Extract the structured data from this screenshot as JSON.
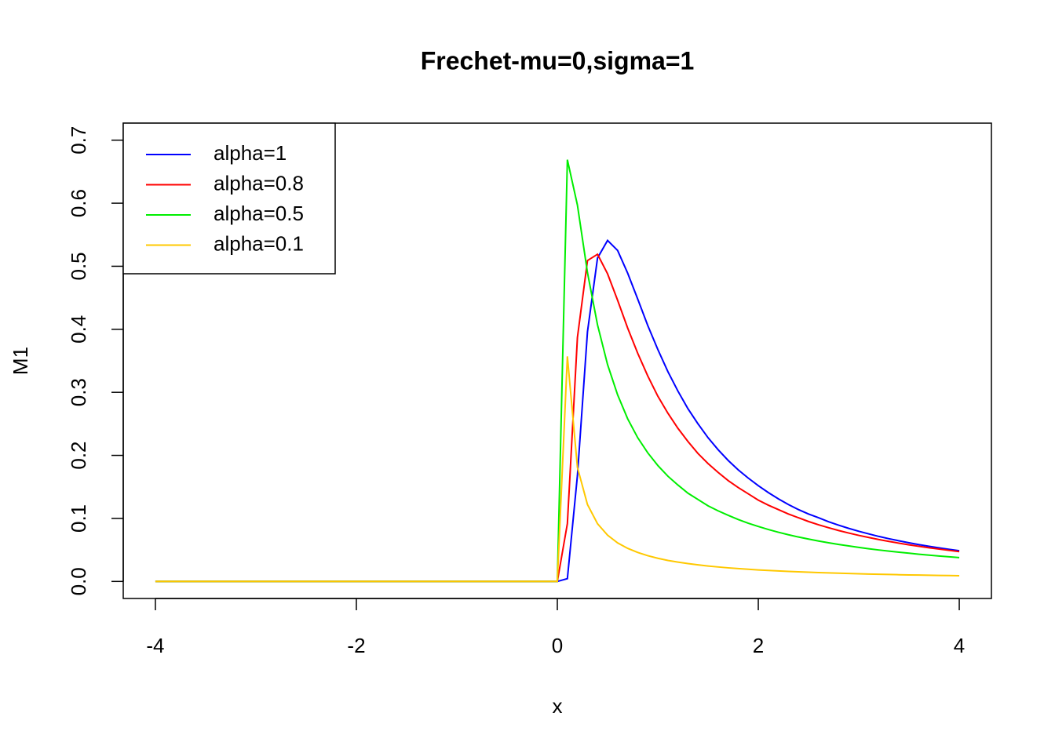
{
  "chart_data": {
    "type": "line",
    "title": "Frechet-mu=0,sigma=1",
    "x_label": "x",
    "y_label": "M1",
    "x": [
      -4,
      -3.9,
      -3.8,
      -3.7,
      -3.6,
      -3.5,
      -3.4,
      -3.3,
      -3.2,
      -3.1,
      -3,
      -2.9,
      -2.8,
      -2.7,
      -2.6,
      -2.5,
      -2.4,
      -2.3,
      -2.2,
      -2.1,
      -2,
      -1.9,
      -1.8,
      -1.7,
      -1.6,
      -1.5,
      -1.4,
      -1.3,
      -1.2,
      -1.1,
      -1,
      -0.9,
      -0.8,
      -0.7,
      -0.6,
      -0.5,
      -0.4,
      -0.3,
      -0.2,
      -0.1,
      0,
      0.1,
      0.2,
      0.3,
      0.4,
      0.5,
      0.6,
      0.7,
      0.8,
      0.9,
      1,
      1.1,
      1.2,
      1.3,
      1.4,
      1.5,
      1.6,
      1.7,
      1.8,
      1.9,
      2,
      2.1,
      2.2,
      2.3,
      2.4,
      2.5,
      2.6,
      2.7,
      2.8,
      2.9,
      3,
      3.1,
      3.2,
      3.3,
      3.4,
      3.5,
      3.6,
      3.7,
      3.8,
      3.9,
      4
    ],
    "series": [
      {
        "name": "alpha=1",
        "color": "#0000ff",
        "values": [
          0,
          0,
          0,
          0,
          0,
          0,
          0,
          0,
          0,
          0,
          0,
          0,
          0,
          0,
          0,
          0,
          0,
          0,
          0,
          0,
          0,
          0,
          0,
          0,
          0,
          0,
          0,
          0,
          0,
          0,
          0,
          0,
          0,
          0,
          0,
          0,
          0,
          0,
          0,
          0,
          0,
          0.0045,
          0.168,
          0.396,
          0.513,
          0.541,
          0.525,
          0.489,
          0.448,
          0.406,
          0.368,
          0.333,
          0.302,
          0.274,
          0.25,
          0.228,
          0.209,
          0.192,
          0.177,
          0.164,
          0.152,
          0.141,
          0.131,
          0.122,
          0.114,
          0.107,
          0.101,
          0.0947,
          0.0893,
          0.0842,
          0.0796,
          0.0754,
          0.0714,
          0.0678,
          0.0645,
          0.0613,
          0.0584,
          0.0557,
          0.0532,
          0.0509,
          0.0487
        ]
      },
      {
        "name": "alpha=0.8",
        "color": "#ff0000",
        "values": [
          0,
          0,
          0,
          0,
          0,
          0,
          0,
          0,
          0,
          0,
          0,
          0,
          0,
          0,
          0,
          0,
          0,
          0,
          0,
          0,
          0,
          0,
          0,
          0,
          0,
          0,
          0,
          0,
          0,
          0,
          0,
          0,
          0,
          0,
          0,
          0,
          0,
          0,
          0,
          0,
          0,
          0.0918,
          0.387,
          0.509,
          0.519,
          0.488,
          0.446,
          0.402,
          0.362,
          0.326,
          0.294,
          0.267,
          0.243,
          0.222,
          0.203,
          0.187,
          0.173,
          0.16,
          0.149,
          0.139,
          0.129,
          0.121,
          0.114,
          0.107,
          0.101,
          0.0951,
          0.0899,
          0.0852,
          0.0808,
          0.0768,
          0.0731,
          0.0697,
          0.0665,
          0.0635,
          0.0607,
          0.0581,
          0.0557,
          0.0534,
          0.0513,
          0.0493,
          0.0474
        ]
      },
      {
        "name": "alpha=0.5",
        "color": "#00ee00",
        "values": [
          0,
          0,
          0,
          0,
          0,
          0,
          0,
          0,
          0,
          0,
          0,
          0,
          0,
          0,
          0,
          0,
          0,
          0,
          0,
          0,
          0,
          0,
          0,
          0,
          0,
          0,
          0,
          0,
          0,
          0,
          0,
          0,
          0,
          0,
          0,
          0,
          0,
          0,
          0,
          0,
          0,
          0.669,
          0.597,
          0.49,
          0.407,
          0.344,
          0.296,
          0.258,
          0.228,
          0.204,
          0.184,
          0.167,
          0.153,
          0.14,
          0.13,
          0.12,
          0.112,
          0.105,
          0.0983,
          0.0924,
          0.0872,
          0.0824,
          0.0781,
          0.0741,
          0.0705,
          0.0672,
          0.0641,
          0.0613,
          0.0587,
          0.0563,
          0.054,
          0.0519,
          0.0499,
          0.0481,
          0.0464,
          0.0448,
          0.0432,
          0.0418,
          0.0404,
          0.0391,
          0.0379
        ]
      },
      {
        "name": "alpha=0.1",
        "color": "#ffc800",
        "values": [
          0,
          0,
          0,
          0,
          0,
          0,
          0,
          0,
          0,
          0,
          0,
          0,
          0,
          0,
          0,
          0,
          0,
          0,
          0,
          0,
          0,
          0,
          0,
          0,
          0,
          0,
          0,
          0,
          0,
          0,
          0,
          0,
          0,
          0,
          0,
          0,
          0,
          0,
          0,
          0,
          0,
          0.357,
          0.181,
          0.122,
          0.0916,
          0.0734,
          0.0612,
          0.0525,
          0.046,
          0.0409,
          0.0368,
          0.0334,
          0.0307,
          0.0283,
          0.0263,
          0.0245,
          0.023,
          0.0216,
          0.0204,
          0.0193,
          0.0183,
          0.0175,
          0.0167,
          0.0159,
          0.0153,
          0.0147,
          0.0141,
          0.0136,
          0.0131,
          0.0126,
          0.0122,
          0.0118,
          0.0114,
          0.0111,
          0.0107,
          0.0104,
          0.0101,
          0.00986,
          0.0096,
          0.00935,
          0.00911
        ]
      }
    ],
    "xlim": [
      -4.32,
      4.32
    ],
    "ylim": [
      -0.027,
      0.727
    ],
    "xticks": [
      -4,
      -2,
      0,
      2,
      4
    ],
    "yticks": [
      {
        "value": 0,
        "label": "0.0"
      },
      0.1,
      0.2,
      0.3,
      0.4,
      0.5,
      0.6,
      0.7
    ],
    "grid": false,
    "legend": "topleft"
  }
}
